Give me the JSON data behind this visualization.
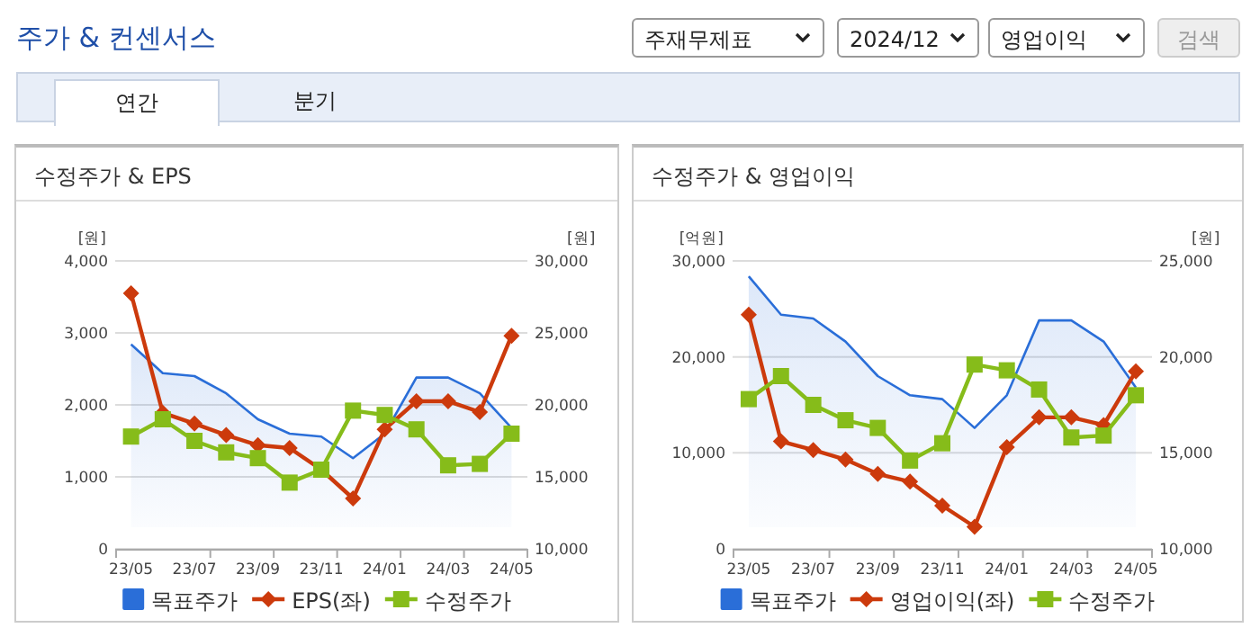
{
  "chart_data": [
    {
      "type": "line",
      "title": "수정주가 & EPS",
      "ylabel": "[원]",
      "y2label": "[원]",
      "annotations": [
        "주가 & 컨센서스",
        "주재무제표",
        "2024/12",
        "영업이익",
        "검색",
        "연간",
        "분기"
      ],
      "categories": [
        "23/05",
        null,
        "23/07",
        null,
        "23/09",
        null,
        "23/11",
        null,
        "24/01",
        null,
        "24/03",
        null,
        "24/05"
      ],
      "ylim": [
        0,
        4000
      ],
      "yticks": [
        0,
        {
          "value": 1000,
          "label": "1,000"
        },
        {
          "value": 2000,
          "label": "2,000"
        },
        {
          "value": 3000,
          "label": "3,000"
        },
        {
          "value": 4000,
          "label": "4,000"
        }
      ],
      "y2lim": [
        10000,
        30000
      ],
      "y2ticks": [
        {
          "value": 10000,
          "label": "10,000"
        },
        {
          "value": 15000,
          "label": "15,000"
        },
        {
          "value": 20000,
          "label": "20,000"
        },
        {
          "value": 25000,
          "label": "25,000"
        },
        {
          "value": 30000,
          "label": "30,000"
        }
      ],
      "grid": "y",
      "legend": "bottom",
      "series": [
        {
          "name": "목표주가",
          "type": "area",
          "axis": "y2",
          "color": "#2a6ed8",
          "values": [
            24200,
            22200,
            22000,
            20800,
            19000,
            18000,
            17800,
            16300,
            18000,
            21900,
            21900,
            20800,
            18400
          ]
        },
        {
          "name": "EPS(좌)",
          "type": "line",
          "color": "#cc3a0c",
          "marker": "diamond",
          "values": [
            3550,
            1890,
            1740,
            1580,
            1440,
            1400,
            1100,
            700,
            1660,
            2050,
            2050,
            1900,
            2960
          ]
        },
        {
          "name": "수정주가",
          "type": "line",
          "axis": "y2",
          "color": "#86bc1a",
          "marker": "square",
          "values": [
            17800,
            19000,
            17500,
            16700,
            16300,
            14600,
            15500,
            19600,
            19300,
            18300,
            15800,
            15900,
            18000
          ]
        }
      ]
    },
    {
      "type": "line",
      "title": "수정주가 & 영업이익",
      "ylabel": "[억원]",
      "y2label": "[원]",
      "categories": [
        "23/05",
        null,
        "23/07",
        null,
        "23/09",
        null,
        "23/11",
        null,
        "24/01",
        null,
        "24/03",
        null,
        "24/05"
      ],
      "ylim": [
        0,
        30000
      ],
      "yticks": [
        0,
        {
          "value": 10000,
          "label": "10,000"
        },
        {
          "value": 20000,
          "label": "20,000"
        },
        {
          "value": 30000,
          "label": "30,000"
        }
      ],
      "y2lim": [
        10000,
        25000
      ],
      "y2ticks": [
        {
          "value": 10000,
          "label": "10,000"
        },
        {
          "value": 15000,
          "label": "15,000"
        },
        {
          "value": 20000,
          "label": "20,000"
        },
        {
          "value": 25000,
          "label": "25,000"
        }
      ],
      "grid": "y",
      "legend": "bottom",
      "series": [
        {
          "name": "목표주가",
          "type": "area",
          "axis": "y2",
          "color": "#2a6ed8",
          "values": [
            24200,
            22200,
            22000,
            20800,
            19000,
            18000,
            17800,
            16300,
            18000,
            21900,
            21900,
            20800,
            18400
          ]
        },
        {
          "name": "영업이익(좌)",
          "type": "line",
          "color": "#cc3a0c",
          "marker": "diamond",
          "values": [
            24400,
            11200,
            10300,
            9300,
            7800,
            7000,
            4500,
            2300,
            10600,
            13700,
            13700,
            12900,
            18500
          ]
        },
        {
          "name": "수정주가",
          "type": "line",
          "axis": "y2",
          "color": "#86bc1a",
          "marker": "square",
          "values": [
            17800,
            19000,
            17500,
            16700,
            16300,
            14600,
            15500,
            19600,
            19300,
            18300,
            15800,
            15900,
            18000
          ]
        }
      ]
    }
  ]
}
